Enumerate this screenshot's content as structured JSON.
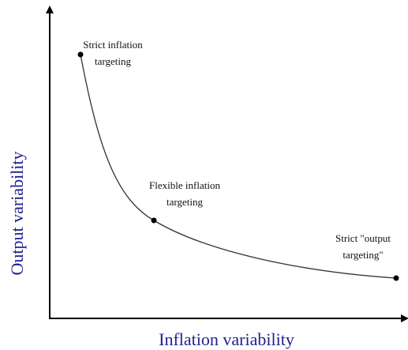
{
  "diagram": {
    "x_axis_label": "Inflation variability",
    "y_axis_label": "Output variability",
    "points": [
      {
        "label_lines": [
          "Strict inflation",
          "targeting"
        ]
      },
      {
        "label_lines": [
          "Flexible inflation",
          "targeting"
        ]
      },
      {
        "label_lines": [
          "Strict \"output",
          "targeting\""
        ]
      }
    ]
  }
}
